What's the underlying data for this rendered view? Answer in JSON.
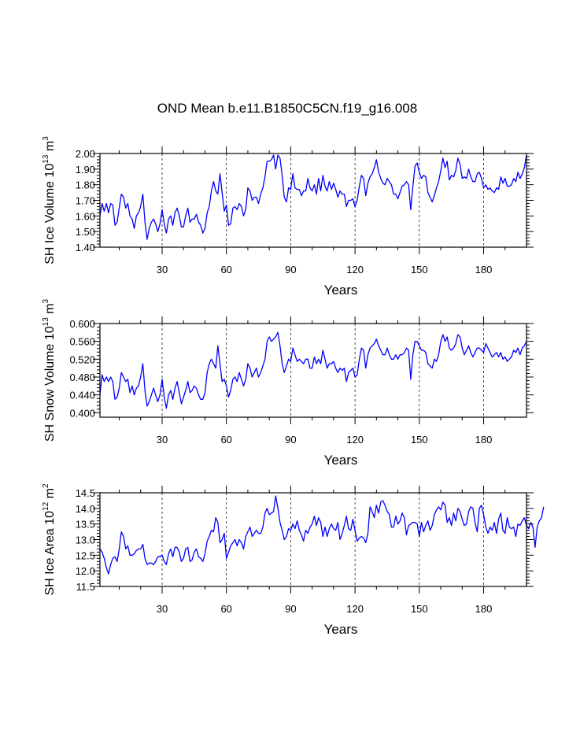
{
  "title": "OND Mean b.e11.B1850C5CN.f19_g16.008",
  "line_color": "#0000ff",
  "grid_color": "#000000",
  "chart_data": [
    {
      "type": "line",
      "name": "sh-ice-volume",
      "ylabel": {
        "base": "SH Ice Volume 10",
        "exp": "13",
        "unit": "m",
        "unit_exp": "3"
      },
      "xlabel": "Years",
      "xlim": [
        1,
        200
      ],
      "ylim": [
        1.4,
        2.0
      ],
      "xticks": [
        30,
        60,
        90,
        120,
        150,
        180
      ],
      "yticks": [
        "1.40",
        "1.50",
        "1.60",
        "1.70",
        "1.80",
        "1.90",
        "2.00"
      ],
      "ytick_values": [
        1.4,
        1.5,
        1.6,
        1.7,
        1.8,
        1.9,
        2.0
      ],
      "series": [
        {
          "name": "SH Ice Volume",
          "x_start": 1,
          "values": [
            1.6,
            1.68,
            1.63,
            1.68,
            1.62,
            1.68,
            1.67,
            1.54,
            1.56,
            1.65,
            1.74,
            1.72,
            1.65,
            1.68,
            1.6,
            1.58,
            1.52,
            1.6,
            1.62,
            1.66,
            1.74,
            1.56,
            1.45,
            1.52,
            1.56,
            1.58,
            1.55,
            1.5,
            1.55,
            1.64,
            1.55,
            1.49,
            1.58,
            1.6,
            1.54,
            1.62,
            1.65,
            1.6,
            1.53,
            1.53,
            1.6,
            1.65,
            1.56,
            1.58,
            1.58,
            1.61,
            1.56,
            1.54,
            1.49,
            1.52,
            1.62,
            1.66,
            1.76,
            1.82,
            1.76,
            1.74,
            1.87,
            1.75,
            1.63,
            1.67,
            1.54,
            1.55,
            1.65,
            1.66,
            1.64,
            1.68,
            1.66,
            1.6,
            1.64,
            1.78,
            1.76,
            1.7,
            1.72,
            1.72,
            1.68,
            1.74,
            1.78,
            1.85,
            1.95,
            1.95,
            1.96,
            1.99,
            1.9,
            1.99,
            1.97,
            1.86,
            1.72,
            1.69,
            1.78,
            1.77,
            1.87,
            1.78,
            1.77,
            1.77,
            1.73,
            1.76,
            1.76,
            1.84,
            1.78,
            1.76,
            1.8,
            1.74,
            1.84,
            1.76,
            1.86,
            1.79,
            1.76,
            1.82,
            1.77,
            1.81,
            1.77,
            1.72,
            1.76,
            1.74,
            1.74,
            1.66,
            1.7,
            1.7,
            1.71,
            1.66,
            1.7,
            1.79,
            1.86,
            1.84,
            1.73,
            1.81,
            1.85,
            1.87,
            1.91,
            1.96,
            1.88,
            1.84,
            1.81,
            1.8,
            1.84,
            1.82,
            1.8,
            1.74,
            1.74,
            1.71,
            1.75,
            1.79,
            1.8,
            1.82,
            1.8,
            1.64,
            1.79,
            1.92,
            1.94,
            1.88,
            1.84,
            1.86,
            1.85,
            1.75,
            1.72,
            1.69,
            1.73,
            1.78,
            1.82,
            1.89,
            1.97,
            1.91,
            1.95,
            1.83,
            1.86,
            1.85,
            1.89,
            1.97,
            1.93,
            1.84,
            1.85,
            1.84,
            1.9,
            1.85,
            1.82,
            1.82,
            1.87,
            1.88,
            1.84,
            1.78,
            1.8,
            1.77,
            1.78,
            1.76,
            1.75,
            1.78,
            1.77,
            1.85,
            1.81,
            1.84,
            1.79,
            1.79,
            1.8,
            1.84,
            1.82,
            1.88,
            1.84,
            1.87,
            1.91,
            1.99
          ]
        }
      ]
    },
    {
      "type": "line",
      "name": "sh-snow-volume",
      "ylabel": {
        "base": "SH Snow Volume 10",
        "exp": "13",
        "unit": "m",
        "unit_exp": "3"
      },
      "xlabel": "Years",
      "xlim": [
        1,
        200
      ],
      "ylim": [
        0.39,
        0.6
      ],
      "xticks": [
        30,
        60,
        90,
        120,
        150,
        180
      ],
      "yticks": [
        "0.400",
        "0.440",
        "0.480",
        "0.520",
        "0.560",
        "0.600"
      ],
      "ytick_values": [
        0.4,
        0.44,
        0.48,
        0.52,
        0.56,
        0.6
      ],
      "series": [
        {
          "name": "SH Snow Volume",
          "x_start": 1,
          "values": [
            0.44,
            0.485,
            0.47,
            0.48,
            0.47,
            0.48,
            0.47,
            0.43,
            0.435,
            0.455,
            0.49,
            0.48,
            0.47,
            0.475,
            0.445,
            0.46,
            0.44,
            0.455,
            0.46,
            0.48,
            0.51,
            0.45,
            0.415,
            0.425,
            0.44,
            0.455,
            0.44,
            0.425,
            0.44,
            0.475,
            0.435,
            0.41,
            0.44,
            0.45,
            0.43,
            0.455,
            0.47,
            0.445,
            0.42,
            0.435,
            0.45,
            0.47,
            0.445,
            0.45,
            0.46,
            0.455,
            0.44,
            0.43,
            0.43,
            0.445,
            0.49,
            0.51,
            0.52,
            0.51,
            0.5,
            0.55,
            0.51,
            0.47,
            0.475,
            0.46,
            0.435,
            0.45,
            0.475,
            0.48,
            0.47,
            0.49,
            0.475,
            0.46,
            0.475,
            0.51,
            0.5,
            0.48,
            0.49,
            0.5,
            0.48,
            0.49,
            0.505,
            0.52,
            0.56,
            0.57,
            0.56,
            0.565,
            0.57,
            0.58,
            0.55,
            0.51,
            0.49,
            0.505,
            0.52,
            0.515,
            0.545,
            0.53,
            0.515,
            0.52,
            0.515,
            0.51,
            0.52,
            0.52,
            0.5,
            0.5,
            0.525,
            0.51,
            0.52,
            0.51,
            0.54,
            0.52,
            0.5,
            0.51,
            0.51,
            0.515,
            0.5,
            0.49,
            0.5,
            0.495,
            0.5,
            0.47,
            0.49,
            0.495,
            0.5,
            0.48,
            0.485,
            0.52,
            0.545,
            0.54,
            0.5,
            0.53,
            0.545,
            0.55,
            0.555,
            0.565,
            0.55,
            0.54,
            0.53,
            0.53,
            0.545,
            0.53,
            0.52,
            0.52,
            0.53,
            0.52,
            0.53,
            0.53,
            0.535,
            0.545,
            0.54,
            0.475,
            0.53,
            0.56,
            0.56,
            0.55,
            0.54,
            0.54,
            0.535,
            0.51,
            0.505,
            0.5,
            0.52,
            0.515,
            0.53,
            0.56,
            0.575,
            0.56,
            0.57,
            0.545,
            0.54,
            0.545,
            0.555,
            0.575,
            0.57,
            0.545,
            0.53,
            0.54,
            0.55,
            0.535,
            0.525,
            0.535,
            0.545,
            0.545,
            0.54,
            0.535,
            0.555,
            0.545,
            0.535,
            0.525,
            0.53,
            0.535,
            0.525,
            0.535,
            0.52,
            0.525,
            0.515,
            0.52,
            0.525,
            0.54,
            0.535,
            0.545,
            0.53,
            0.545,
            0.55,
            0.56
          ]
        }
      ]
    },
    {
      "type": "line",
      "name": "sh-ice-area",
      "ylabel": {
        "base": "SH Ice Area 10",
        "exp": "12",
        "unit": "m",
        "unit_exp": "2"
      },
      "xlabel": "Years",
      "xlim": [
        1,
        200
      ],
      "ylim": [
        11.5,
        14.5
      ],
      "xticks": [
        30,
        60,
        90,
        120,
        150,
        180
      ],
      "yticks": [
        "11.5",
        "12.0",
        "12.5",
        "13.0",
        "13.5",
        "14.0",
        "14.5"
      ],
      "ytick_values": [
        11.5,
        12.0,
        12.5,
        13.0,
        13.5,
        14.0,
        14.5
      ],
      "series": [
        {
          "name": "SH Ice Area",
          "x_start": 1,
          "values": [
            12.7,
            12.6,
            12.4,
            12.1,
            11.9,
            12.2,
            12.4,
            12.45,
            12.3,
            12.7,
            13.25,
            13.1,
            12.7,
            12.8,
            12.5,
            12.5,
            12.55,
            12.65,
            12.7,
            12.7,
            12.85,
            12.4,
            12.2,
            12.25,
            12.25,
            12.2,
            12.3,
            12.45,
            12.45,
            12.5,
            12.3,
            12.2,
            12.55,
            12.7,
            12.45,
            12.75,
            12.75,
            12.6,
            12.3,
            12.4,
            12.7,
            12.75,
            12.3,
            12.35,
            12.6,
            12.7,
            12.45,
            12.4,
            12.3,
            12.55,
            12.95,
            13.1,
            13.3,
            13.25,
            13.7,
            13.55,
            12.9,
            13.0,
            13.2,
            12.4,
            12.6,
            12.8,
            12.9,
            13.0,
            12.8,
            13.0,
            12.9,
            12.7,
            13.1,
            13.25,
            13.4,
            13.1,
            13.2,
            13.3,
            13.2,
            13.2,
            13.4,
            13.85,
            14.0,
            13.8,
            13.85,
            13.9,
            14.4,
            14.0,
            13.55,
            13.3,
            13.0,
            13.1,
            13.35,
            13.3,
            13.5,
            13.35,
            13.6,
            13.3,
            13.15,
            12.95,
            13.3,
            13.2,
            13.4,
            13.5,
            13.75,
            13.45,
            13.7,
            13.55,
            13.1,
            13.4,
            13.1,
            13.35,
            13.5,
            13.35,
            13.3,
            13.55,
            13.0,
            13.2,
            13.45,
            13.75,
            13.35,
            13.3,
            13.65,
            13.3,
            12.95,
            13.05,
            13.1,
            13.05,
            12.9,
            13.2,
            14.05,
            13.9,
            13.7,
            14.1,
            13.85,
            14.2,
            14.25,
            14.1,
            13.9,
            13.8,
            13.4,
            13.4,
            13.75,
            13.5,
            13.6,
            13.85,
            13.7,
            13.15,
            13.45,
            13.5,
            13.55,
            13.55,
            13.5,
            13.1,
            13.55,
            13.25,
            13.45,
            13.6,
            13.3,
            13.45,
            13.8,
            13.95,
            14.05,
            13.95,
            14.2,
            14.1,
            13.55,
            13.7,
            13.45,
            13.85,
            13.6,
            14.0,
            13.9,
            13.65,
            13.45,
            13.5,
            13.9,
            14.05,
            14.0,
            13.55,
            13.25,
            14.0,
            14.1,
            13.8,
            13.4,
            13.2,
            13.4,
            13.3,
            13.55,
            13.2,
            13.65,
            13.85,
            13.3,
            13.2,
            13.7,
            13.4,
            13.35,
            13.4,
            13.1,
            13.5,
            13.45,
            13.6,
            13.7,
            13.45,
            13.35,
            13.55,
            13.4,
            12.75,
            13.4,
            13.6,
            13.7,
            14.05
          ]
        }
      ]
    }
  ]
}
